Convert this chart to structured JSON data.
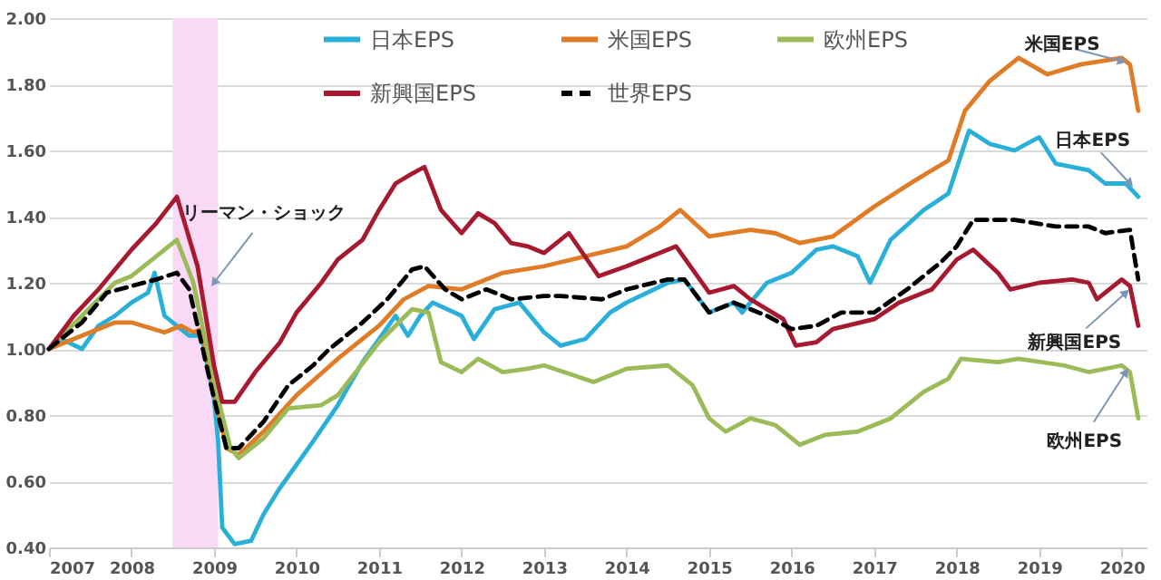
{
  "chart_data": {
    "type": "line",
    "xlim": [
      2007,
      2020.3
    ],
    "xticks": [
      2007,
      2008,
      2009,
      2010,
      2011,
      2012,
      2013,
      2014,
      2015,
      2016,
      2017,
      2018,
      2019,
      2020
    ],
    "ylim": [
      0.4,
      2.0
    ],
    "yticks": [
      {
        "value": 0.4,
        "label": "0.40"
      },
      {
        "value": 0.6,
        "label": "0.60"
      },
      {
        "value": 0.8,
        "label": "0.80"
      },
      {
        "value": 1.0,
        "label": "1.00"
      },
      {
        "value": 1.2,
        "label": "1.20"
      },
      {
        "value": 1.4,
        "label": "1.40"
      },
      {
        "value": 1.6,
        "label": "1.60"
      },
      {
        "value": 1.8,
        "label": "1.80"
      },
      {
        "value": 2.0,
        "label": "2.00"
      }
    ],
    "grid": "y",
    "legend": "top",
    "bands": [
      {
        "axis": "x",
        "from": 2008.5,
        "to": 2009.05,
        "color": "#f9d9f5"
      }
    ],
    "annotations": [
      {
        "text": "リーマン・ショック",
        "x": 2009.0,
        "y": 1.2
      },
      {
        "text": "米国EPS",
        "x": 2020.0,
        "y": 1.87
      },
      {
        "text": "日本EPS",
        "x": 2020.1,
        "y": 1.5
      },
      {
        "text": "新興国EPS",
        "x": 2020.05,
        "y": 1.17
      },
      {
        "text": "欧州EPS",
        "x": 2020.05,
        "y": 0.93
      }
    ],
    "series": [
      {
        "name": "日本EPS",
        "color": "#2ab0d8",
        "line_style": "solid",
        "x": [
          2007.0,
          2007.15,
          2007.4,
          2007.6,
          2007.8,
          2008.0,
          2008.2,
          2008.28,
          2008.4,
          2008.6,
          2008.7,
          2008.85,
          2009.0,
          2009.05,
          2009.1,
          2009.25,
          2009.45,
          2009.6,
          2009.8,
          2010.0,
          2010.2,
          2010.5,
          2010.8,
          2011.0,
          2011.2,
          2011.35,
          2011.5,
          2011.65,
          2012.0,
          2012.15,
          2012.4,
          2012.7,
          2013.0,
          2013.2,
          2013.5,
          2013.8,
          2014.0,
          2014.5,
          2014.7,
          2015.0,
          2015.3,
          2015.4,
          2015.7,
          2016.0,
          2016.3,
          2016.5,
          2016.8,
          2016.95,
          2017.2,
          2017.6,
          2017.9,
          2018.15,
          2018.4,
          2018.7,
          2019.0,
          2019.2,
          2019.6,
          2019.8,
          2020.05,
          2020.2
        ],
        "values": [
          1.0,
          1.03,
          1.0,
          1.07,
          1.1,
          1.14,
          1.17,
          1.23,
          1.1,
          1.06,
          1.04,
          1.04,
          0.85,
          0.72,
          0.46,
          0.41,
          0.42,
          0.5,
          0.58,
          0.65,
          0.72,
          0.83,
          0.96,
          1.03,
          1.1,
          1.04,
          1.1,
          1.14,
          1.1,
          1.03,
          1.12,
          1.14,
          1.05,
          1.01,
          1.03,
          1.11,
          1.14,
          1.2,
          1.21,
          1.11,
          1.14,
          1.11,
          1.2,
          1.23,
          1.3,
          1.31,
          1.28,
          1.2,
          1.33,
          1.42,
          1.47,
          1.66,
          1.62,
          1.6,
          1.64,
          1.56,
          1.54,
          1.5,
          1.5,
          1.46
        ]
      },
      {
        "name": "米国EPS",
        "color": "#e07b26",
        "line_style": "solid",
        "x": [
          2007.0,
          2007.5,
          2007.8,
          2008.0,
          2008.4,
          2008.6,
          2008.75,
          2008.85,
          2009.0,
          2009.15,
          2009.3,
          2009.6,
          2010.0,
          2010.5,
          2011.0,
          2011.3,
          2011.6,
          2012.0,
          2012.5,
          2013.0,
          2014.0,
          2014.4,
          2014.65,
          2015.0,
          2015.5,
          2015.8,
          2016.1,
          2016.5,
          2017.0,
          2017.5,
          2017.9,
          2018.1,
          2018.4,
          2018.75,
          2019.1,
          2019.5,
          2020.0,
          2020.1,
          2020.2
        ],
        "values": [
          1.0,
          1.05,
          1.08,
          1.08,
          1.05,
          1.07,
          1.05,
          1.06,
          0.88,
          0.7,
          0.68,
          0.75,
          0.86,
          0.97,
          1.07,
          1.15,
          1.19,
          1.18,
          1.23,
          1.25,
          1.31,
          1.37,
          1.42,
          1.34,
          1.36,
          1.35,
          1.32,
          1.34,
          1.43,
          1.51,
          1.57,
          1.72,
          1.81,
          1.88,
          1.83,
          1.86,
          1.88,
          1.86,
          1.72
        ]
      },
      {
        "name": "欧州EPS",
        "color": "#9bbb59",
        "line_style": "solid",
        "x": [
          2007.0,
          2007.4,
          2007.8,
          2008.0,
          2008.3,
          2008.55,
          2008.75,
          2009.0,
          2009.2,
          2009.3,
          2009.6,
          2009.9,
          2010.3,
          2010.5,
          2011.0,
          2011.4,
          2011.6,
          2011.75,
          2012.0,
          2012.2,
          2012.5,
          2012.8,
          2013.0,
          2013.6,
          2014.0,
          2014.5,
          2014.8,
          2015.0,
          2015.2,
          2015.5,
          2015.8,
          2016.1,
          2016.4,
          2016.8,
          2017.2,
          2017.6,
          2017.9,
          2018.05,
          2018.5,
          2018.75,
          2019.3,
          2019.6,
          2020.0,
          2020.1,
          2020.2
        ],
        "values": [
          1.0,
          1.1,
          1.2,
          1.22,
          1.28,
          1.33,
          1.2,
          0.9,
          0.7,
          0.67,
          0.73,
          0.82,
          0.83,
          0.86,
          1.02,
          1.12,
          1.11,
          0.96,
          0.93,
          0.97,
          0.93,
          0.94,
          0.95,
          0.9,
          0.94,
          0.95,
          0.89,
          0.79,
          0.75,
          0.79,
          0.77,
          0.71,
          0.74,
          0.75,
          0.79,
          0.87,
          0.91,
          0.97,
          0.96,
          0.97,
          0.95,
          0.93,
          0.95,
          0.93,
          0.79
        ]
      },
      {
        "name": "新興国EPS",
        "color": "#a6192e",
        "line_style": "solid",
        "x": [
          2007.0,
          2007.3,
          2007.6,
          2008.0,
          2008.3,
          2008.55,
          2008.8,
          2009.0,
          2009.1,
          2009.25,
          2009.5,
          2009.8,
          2010.0,
          2010.3,
          2010.5,
          2010.8,
          2011.0,
          2011.2,
          2011.4,
          2011.55,
          2011.75,
          2012.0,
          2012.2,
          2012.4,
          2012.6,
          2012.8,
          2013.0,
          2013.3,
          2013.66,
          2014.0,
          2014.5,
          2014.6,
          2015.0,
          2015.3,
          2015.5,
          2015.9,
          2016.05,
          2016.3,
          2016.5,
          2017.0,
          2017.3,
          2017.7,
          2018.0,
          2018.2,
          2018.5,
          2018.65,
          2019.0,
          2019.4,
          2019.6,
          2019.7,
          2019.9,
          2020.0,
          2020.1,
          2020.2
        ],
        "values": [
          1.0,
          1.1,
          1.18,
          1.3,
          1.38,
          1.46,
          1.25,
          0.95,
          0.84,
          0.84,
          0.93,
          1.02,
          1.11,
          1.2,
          1.27,
          1.33,
          1.42,
          1.5,
          1.53,
          1.55,
          1.42,
          1.35,
          1.41,
          1.38,
          1.32,
          1.31,
          1.29,
          1.35,
          1.22,
          1.25,
          1.3,
          1.31,
          1.17,
          1.19,
          1.15,
          1.09,
          1.01,
          1.02,
          1.06,
          1.09,
          1.14,
          1.18,
          1.27,
          1.3,
          1.23,
          1.18,
          1.2,
          1.21,
          1.2,
          1.15,
          1.19,
          1.21,
          1.19,
          1.07
        ]
      },
      {
        "name": "世界EPS",
        "color": "#000000",
        "line_style": "dashed",
        "x": [
          2007.0,
          2007.4,
          2007.7,
          2008.0,
          2008.3,
          2008.55,
          2008.7,
          2009.0,
          2009.15,
          2009.3,
          2009.6,
          2009.9,
          2010.2,
          2010.4,
          2010.8,
          2011.1,
          2011.4,
          2011.55,
          2011.8,
          2012.0,
          2012.3,
          2012.6,
          2013.0,
          2013.2,
          2013.7,
          2014.0,
          2014.5,
          2014.7,
          2015.0,
          2015.3,
          2015.7,
          2016.0,
          2016.3,
          2016.6,
          2017.0,
          2017.4,
          2017.8,
          2018.0,
          2018.2,
          2018.7,
          2019.2,
          2019.6,
          2019.8,
          2020.1,
          2020.2
        ],
        "values": [
          1.0,
          1.08,
          1.17,
          1.19,
          1.21,
          1.23,
          1.18,
          0.85,
          0.7,
          0.7,
          0.78,
          0.89,
          0.95,
          1.0,
          1.08,
          1.15,
          1.24,
          1.25,
          1.18,
          1.15,
          1.18,
          1.15,
          1.16,
          1.16,
          1.15,
          1.18,
          1.21,
          1.21,
          1.11,
          1.14,
          1.1,
          1.06,
          1.07,
          1.11,
          1.11,
          1.18,
          1.26,
          1.31,
          1.39,
          1.39,
          1.37,
          1.37,
          1.35,
          1.36,
          1.21
        ]
      }
    ]
  }
}
